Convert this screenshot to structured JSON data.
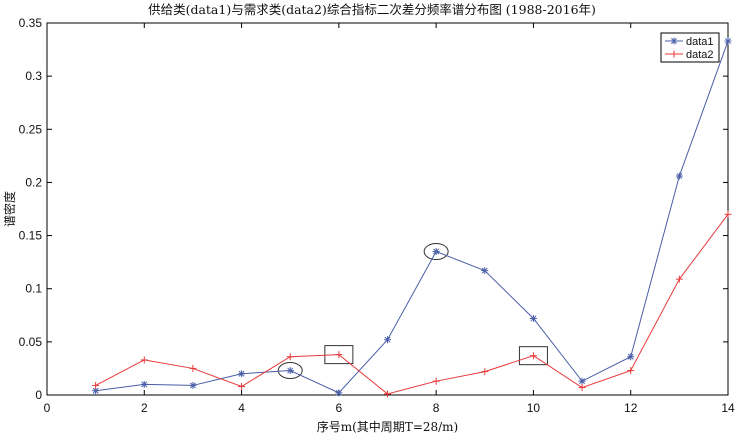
{
  "chart_data": {
    "type": "line",
    "title": "供给类(data1)与需求类(data2)综合指标二次差分频率谱分布图 (1988-2016年)",
    "xlabel": "序号m(其中周期T=28/m)",
    "ylabel": "谱密度",
    "xlim": [
      0,
      14
    ],
    "ylim": [
      0,
      0.35
    ],
    "xticks": [
      0,
      2,
      4,
      6,
      8,
      10,
      12,
      14
    ],
    "yticks": [
      0,
      0.05,
      0.1,
      0.15,
      0.2,
      0.25,
      0.3,
      0.35
    ],
    "xtick_labels": [
      "0",
      "2",
      "4",
      "6",
      "8",
      "10",
      "12",
      "14"
    ],
    "ytick_labels": [
      "0",
      "0.05",
      "0.1",
      "0.15",
      "0.2",
      "0.25",
      "0.3",
      "0.35"
    ],
    "grid": false,
    "legend_position": "top-right",
    "x": [
      1,
      2,
      3,
      4,
      5,
      6,
      7,
      8,
      9,
      10,
      11,
      12,
      13,
      14
    ],
    "series": [
      {
        "name": "data1",
        "color": "#4a5ea8",
        "marker": "asterisk",
        "values": [
          0.004,
          0.01,
          0.009,
          0.02,
          0.023,
          0.002,
          0.052,
          0.135,
          0.117,
          0.072,
          0.013,
          0.036,
          0.206,
          0.333
        ]
      },
      {
        "name": "data2",
        "color": "#e8393a",
        "marker": "plus",
        "values": [
          0.009,
          0.033,
          0.025,
          0.008,
          0.036,
          0.038,
          0.001,
          0.013,
          0.022,
          0.037,
          0.007,
          0.023,
          0.109,
          0.17
        ]
      }
    ],
    "annotations": [
      {
        "shape": "ellipse",
        "x": 5,
        "y": 0.023
      },
      {
        "shape": "square",
        "x": 6,
        "y": 0.038
      },
      {
        "shape": "ellipse",
        "x": 8,
        "y": 0.135
      },
      {
        "shape": "square",
        "x": 10,
        "y": 0.037
      }
    ]
  }
}
